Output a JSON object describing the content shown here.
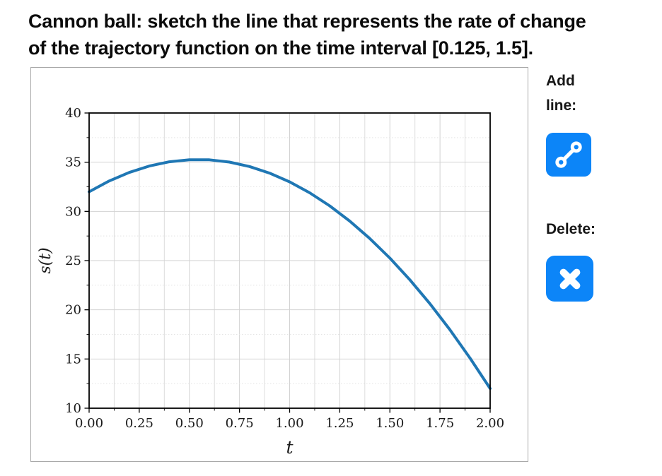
{
  "title": {
    "line1": "Cannon ball: sketch the line that represents the rate of change",
    "line2": "of the trajectory function on the time interval [0.125, 1.5]."
  },
  "sidebar": {
    "add_label": "Add line:",
    "delete_label": "Delete:",
    "button_color": "#0c85f8"
  },
  "chart_data": {
    "type": "line",
    "title": "",
    "xlabel": "t",
    "ylabel": "s(t)",
    "xlim": [
      0,
      2
    ],
    "ylim": [
      10,
      40
    ],
    "grid": "both",
    "legend": "none",
    "x_tick_values": [
      0,
      0.25,
      0.5,
      0.75,
      1.0,
      1.25,
      1.5,
      1.75,
      2.0
    ],
    "x_tick_labels": [
      "0.00",
      "0.25",
      "0.50",
      "0.75",
      "1.00",
      "1.25",
      "1.50",
      "1.75",
      "2.00"
    ],
    "x_minor_step": 0.125,
    "y_tick_values": [
      10,
      15,
      20,
      25,
      30,
      35,
      40
    ],
    "y_tick_labels": [
      "10",
      "15",
      "20",
      "25",
      "30",
      "35",
      "40"
    ],
    "y_minor_step": 2.5,
    "line_color": "#1f77b4",
    "line_width": 4,
    "series": [
      {
        "name": "trajectory",
        "x": [
          0.0,
          0.1,
          0.2,
          0.3,
          0.4,
          0.5,
          0.6,
          0.7,
          0.8,
          0.9,
          1.0,
          1.1,
          1.2,
          1.3,
          1.4,
          1.5,
          1.6,
          1.7,
          1.8,
          1.9,
          2.0
        ],
        "y": [
          32.0,
          33.09,
          33.96,
          34.61,
          35.04,
          35.25,
          35.24,
          35.01,
          34.56,
          33.89,
          33.0,
          31.89,
          30.56,
          29.01,
          27.24,
          25.25,
          23.04,
          20.61,
          17.96,
          15.09,
          12.0
        ]
      }
    ]
  }
}
